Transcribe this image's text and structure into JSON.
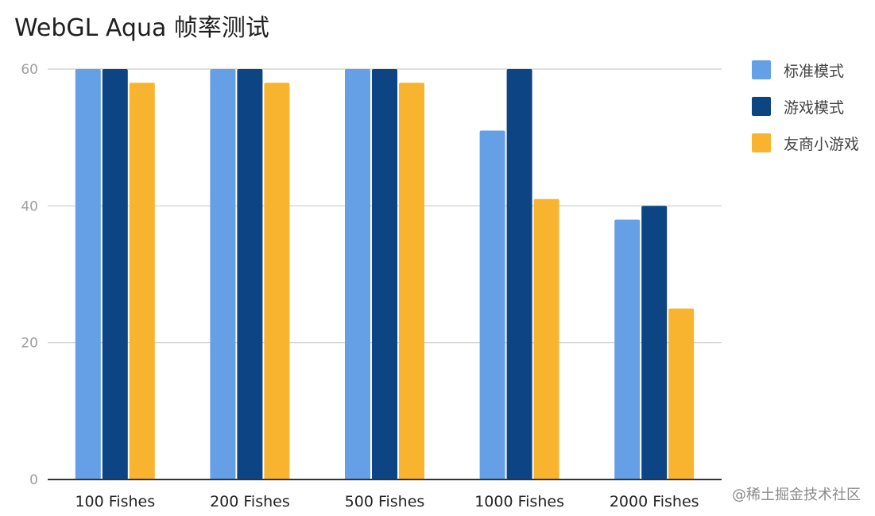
{
  "watermark": "@稀土掘金技术社区",
  "colors": {
    "grid": "#cccccc",
    "axis": "#333333",
    "tick_label": "#9e9e9e",
    "category_label": "#222222"
  },
  "chart_data": {
    "type": "bar",
    "title": "WebGL Aqua 帧率测试",
    "xlabel": "",
    "ylabel": "",
    "ylim": [
      0,
      60
    ],
    "yticks": [
      0,
      20,
      40,
      60
    ],
    "grid": true,
    "legend_position": "right",
    "categories": [
      "100 Fishes",
      "200 Fishes",
      "500 Fishes",
      "1000 Fishes",
      "2000 Fishes"
    ],
    "series": [
      {
        "name": "标准模式",
        "color": "#659fe5",
        "values": [
          60,
          60,
          60,
          51,
          38
        ]
      },
      {
        "name": "游戏模式",
        "color": "#0c4484",
        "values": [
          60,
          60,
          60,
          60,
          40
        ]
      },
      {
        "name": "友商小游戏",
        "color": "#f8b42e",
        "values": [
          58,
          58,
          58,
          41,
          25
        ]
      }
    ]
  }
}
